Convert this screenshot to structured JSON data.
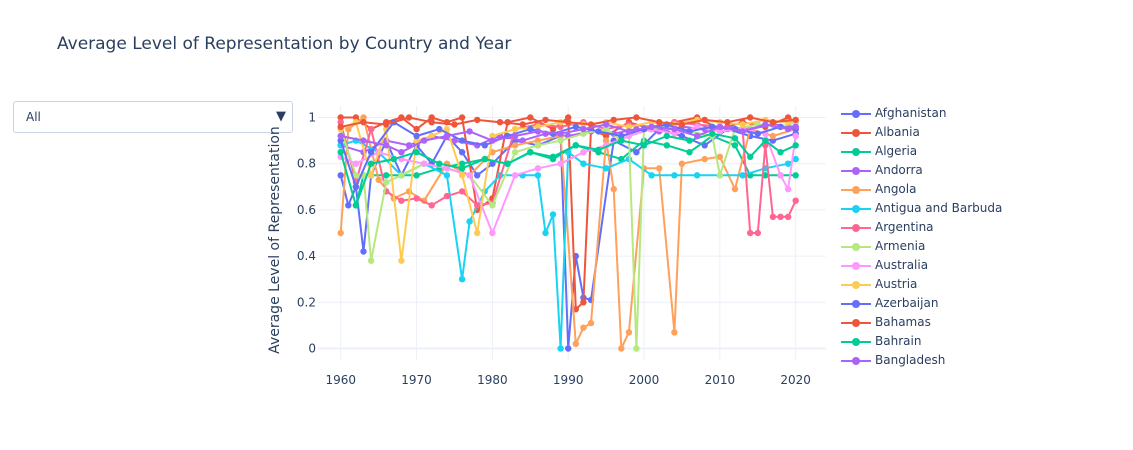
{
  "chart_data": {
    "type": "line",
    "title": "Average Level of Representation by Country and Year",
    "xlabel": "",
    "ylabel": "Average Level of Representation",
    "xlim": [
      1957,
      2024
    ],
    "ylim": [
      -0.05,
      1.05
    ],
    "x_ticks": [
      "1960",
      "1970",
      "1980",
      "1990",
      "2000",
      "2010",
      "2020"
    ],
    "y_ticks": [
      "0",
      "0.2",
      "0.4",
      "0.6",
      "0.8",
      "1"
    ],
    "grid": true,
    "legend_position": "right",
    "mode": "lines+markers",
    "series": [
      {
        "name": "Afghanistan",
        "color": "#636efa",
        "x": [
          1960,
          1961,
          1962,
          1963,
          1964,
          1966,
          1968,
          1970,
          1972,
          1974,
          1976,
          1978,
          1980,
          1983,
          1986,
          1989,
          1990,
          1991,
          1992,
          1993,
          1996,
          1999,
          2002,
          2005,
          2008,
          2011,
          2014,
          2017,
          2020
        ],
        "y": [
          0.75,
          0.62,
          0.7,
          0.42,
          0.75,
          0.9,
          0.75,
          0.88,
          0.8,
          0.92,
          0.85,
          0.75,
          0.8,
          0.9,
          0.88,
          0.92,
          0,
          0.4,
          0.22,
          0.21,
          0.9,
          0.85,
          0.95,
          0.92,
          0.88,
          0.95,
          0.92,
          0.9,
          0.93
        ]
      },
      {
        "name": "Albania",
        "color": "#ef553b",
        "x": [
          1960,
          1962,
          1964,
          1966,
          1968,
          1970,
          1972,
          1974,
          1976,
          1978,
          1980,
          1982,
          1985,
          1988,
          1990,
          1991,
          1992,
          1993,
          1995,
          1998,
          2001,
          2004,
          2007,
          2010,
          2013,
          2016,
          2019,
          2020
        ],
        "y": [
          1,
          1,
          0.95,
          0.98,
          1,
          0.95,
          1,
          0.98,
          1,
          0.6,
          0.65,
          0.98,
          1,
          0.95,
          1,
          0.17,
          0.2,
          0.95,
          0.92,
          0.98,
          0.95,
          0.98,
          1,
          0.95,
          0.98,
          0.96,
          1,
          0.98
        ]
      },
      {
        "name": "Algeria",
        "color": "#00cc96",
        "x": [
          1962,
          1963,
          1964,
          1966,
          1968,
          1970,
          1973,
          1976,
          1979,
          1982,
          1985,
          1988,
          1991,
          1994,
          1997,
          2000,
          2003,
          2006,
          2009,
          2012,
          2014,
          2016,
          2018,
          2020
        ],
        "y": [
          0.62,
          0.75,
          0.75,
          0.75,
          0.75,
          0.75,
          0.78,
          0.8,
          0.82,
          0.8,
          0.85,
          0.82,
          0.88,
          0.85,
          0.82,
          0.9,
          0.88,
          0.85,
          0.92,
          0.88,
          0.75,
          0.75,
          0.75,
          0.75
        ]
      },
      {
        "name": "Andorra",
        "color": "#ab63fa",
        "x": [
          1960,
          1963,
          1966,
          1969,
          1972,
          1975,
          1978,
          1981,
          1984,
          1987,
          1990,
          1993,
          1996,
          1999,
          2002,
          2005,
          2008,
          2011,
          2014,
          2017,
          2020
        ],
        "y": [
          0.88,
          0.85,
          0.9,
          0.88,
          0.92,
          0.9,
          0.88,
          0.92,
          0.9,
          0.93,
          0.92,
          0.94,
          0.93,
          0.95,
          0.94,
          0.96,
          0.95,
          0.96,
          0.95,
          0.97,
          0.96
        ]
      },
      {
        "name": "Angola",
        "color": "#ffa15a",
        "x": [
          1960,
          1961,
          1963,
          1965,
          1967,
          1969,
          1971,
          1974,
          1977,
          1980,
          1983,
          1986,
          1989,
          1991,
          1992,
          1993,
          1995,
          1996,
          1997,
          1998,
          2000,
          2002,
          2004,
          2005,
          2008,
          2010,
          2012,
          2014,
          2017,
          2020
        ],
        "y": [
          0.5,
          0.95,
          1,
          0.73,
          0.65,
          0.68,
          0.64,
          0.8,
          0.75,
          0.85,
          0.88,
          0.9,
          0.92,
          0.02,
          0.09,
          0.11,
          0.9,
          0.69,
          0,
          0.07,
          0.78,
          0.78,
          0.07,
          0.8,
          0.82,
          0.83,
          0.69,
          0.95,
          0.92,
          0.95
        ]
      },
      {
        "name": "Antigua and Barbuda",
        "color": "#19d3f3",
        "x": [
          1960,
          1962,
          1965,
          1968,
          1971,
          1974,
          1976,
          1977,
          1979,
          1981,
          1984,
          1986,
          1987,
          1988,
          1989,
          1990,
          1992,
          1995,
          1998,
          2001,
          2004,
          2007,
          2010,
          2013,
          2016,
          2019,
          2020
        ],
        "y": [
          0.88,
          0.9,
          0.85,
          0.75,
          0.8,
          0.75,
          0.3,
          0.55,
          0.68,
          0.75,
          0.75,
          0.75,
          0.5,
          0.58,
          0,
          0.85,
          0.8,
          0.78,
          0.82,
          0.75,
          0.75,
          0.75,
          0.75,
          0.75,
          0.78,
          0.8,
          0.82
        ]
      },
      {
        "name": "Argentina",
        "color": "#ff6692",
        "x": [
          1960,
          1962,
          1964,
          1966,
          1968,
          1970,
          1972,
          1974,
          1976,
          1978,
          1980,
          1983,
          1986,
          1989,
          1992,
          1995,
          1998,
          2001,
          2004,
          2007,
          2010,
          2013,
          2014,
          2015,
          2016,
          2017,
          2018,
          2019,
          2020
        ],
        "y": [
          0.98,
          0.72,
          0.95,
          0.68,
          0.64,
          0.65,
          0.62,
          0.66,
          0.68,
          0.62,
          0.63,
          0.95,
          0.97,
          0.96,
          0.98,
          0.95,
          0.97,
          0.96,
          0.98,
          0.97,
          0.96,
          0.95,
          0.5,
          0.5,
          0.88,
          0.57,
          0.57,
          0.57,
          0.64
        ]
      },
      {
        "name": "Armenia",
        "color": "#b6e880",
        "x": [
          1960,
          1962,
          1963,
          1964,
          1966,
          1968,
          1971,
          1974,
          1977,
          1980,
          1983,
          1986,
          1989,
          1992,
          1995,
          1997,
          1998,
          1999,
          2000,
          2003,
          2006,
          2009,
          2010,
          2012,
          2015,
          2018,
          2020
        ],
        "y": [
          0.95,
          0.75,
          0.75,
          0.38,
          0.72,
          0.75,
          0.8,
          0.78,
          0.75,
          0.62,
          0.85,
          0.88,
          0.9,
          0.93,
          0.95,
          0.9,
          0.92,
          0,
          0.95,
          0.96,
          0.94,
          0.92,
          0.75,
          0.95,
          0.97,
          0.96,
          0.98
        ]
      },
      {
        "name": "Australia",
        "color": "#ff97ff",
        "x": [
          1960,
          1962,
          1965,
          1968,
          1971,
          1974,
          1977,
          1980,
          1983,
          1986,
          1989,
          1992,
          1995,
          1998,
          2001,
          2004,
          2007,
          2010,
          2013,
          2016,
          2018,
          2019,
          2020
        ],
        "y": [
          0.83,
          0.8,
          0.85,
          0.82,
          0.8,
          0.78,
          0.75,
          0.5,
          0.75,
          0.78,
          0.8,
          0.85,
          0.88,
          0.92,
          0.95,
          0.93,
          0.96,
          0.94,
          0.95,
          0.93,
          0.75,
          0.69,
          0.92
        ]
      },
      {
        "name": "Austria",
        "color": "#fecb52",
        "x": [
          1960,
          1962,
          1964,
          1966,
          1968,
          1970,
          1972,
          1974,
          1976,
          1978,
          1980,
          1983,
          1986,
          1989,
          1992,
          1995,
          1998,
          2001,
          2004,
          2007,
          2010,
          2013,
          2016,
          2019,
          2020
        ],
        "y": [
          0.95,
          0.98,
          0.75,
          0.95,
          0.38,
          0.9,
          0.92,
          0.95,
          0.75,
          0.5,
          0.92,
          0.95,
          0.96,
          0.98,
          0.97,
          0.98,
          0.96,
          0.98,
          0.97,
          0.99,
          0.98,
          0.97,
          0.99,
          0.98,
          0.99
        ]
      },
      {
        "name": "Azerbaijan",
        "color": "#636efa",
        "x": [
          1960,
          1962,
          1964,
          1967,
          1970,
          1973,
          1976,
          1979,
          1982,
          1985,
          1988,
          1991,
          1994,
          1997,
          2000,
          2003,
          2006,
          2009,
          2012,
          2015,
          2018,
          2020
        ],
        "y": [
          0.9,
          0.7,
          0.85,
          0.98,
          0.92,
          0.95,
          0.9,
          0.88,
          0.92,
          0.95,
          0.93,
          0.96,
          0.94,
          0.92,
          0.95,
          0.97,
          0.94,
          0.96,
          0.95,
          0.93,
          0.96,
          0.95
        ]
      },
      {
        "name": "Bahamas",
        "color": "#ef553b",
        "x": [
          1960,
          1963,
          1966,
          1969,
          1972,
          1975,
          1978,
          1981,
          1984,
          1987,
          1990,
          1993,
          1996,
          1999,
          2002,
          2005,
          2008,
          2011,
          2014,
          2017,
          2020
        ],
        "y": [
          0.96,
          0.98,
          0.97,
          1,
          0.98,
          0.97,
          0.99,
          0.98,
          0.97,
          0.99,
          0.98,
          0.97,
          0.99,
          1,
          0.98,
          0.97,
          0.99,
          0.98,
          1,
          0.98,
          0.99
        ]
      },
      {
        "name": "Bahrain",
        "color": "#00cc96",
        "x": [
          1960,
          1962,
          1964,
          1967,
          1970,
          1973,
          1976,
          1979,
          1982,
          1985,
          1988,
          1991,
          1994,
          1997,
          2000,
          2003,
          2006,
          2009,
          2012,
          2014,
          2016,
          2018,
          2020
        ],
        "y": [
          0.85,
          0.62,
          0.8,
          0.82,
          0.85,
          0.8,
          0.78,
          0.82,
          0.8,
          0.85,
          0.83,
          0.88,
          0.86,
          0.9,
          0.88,
          0.92,
          0.9,
          0.93,
          0.91,
          0.83,
          0.9,
          0.85,
          0.88
        ]
      },
      {
        "name": "Bangladesh",
        "color": "#ab63fa",
        "x": [
          1960,
          1963,
          1966,
          1968,
          1971,
          1974,
          1977,
          1980,
          1983,
          1986,
          1989,
          1992,
          1995,
          1998,
          2001,
          2004,
          2007,
          2010,
          2013,
          2016,
          2019,
          2020
        ],
        "y": [
          0.92,
          0.9,
          0.88,
          0.85,
          0.9,
          0.92,
          0.94,
          0.9,
          0.92,
          0.94,
          0.93,
          0.95,
          0.97,
          0.94,
          0.96,
          0.95,
          0.92,
          0.96,
          0.94,
          0.97,
          0.95,
          0.96
        ]
      }
    ]
  },
  "dropdown": {
    "selected": "All",
    "arrow_icon": "triangle-down-icon"
  }
}
